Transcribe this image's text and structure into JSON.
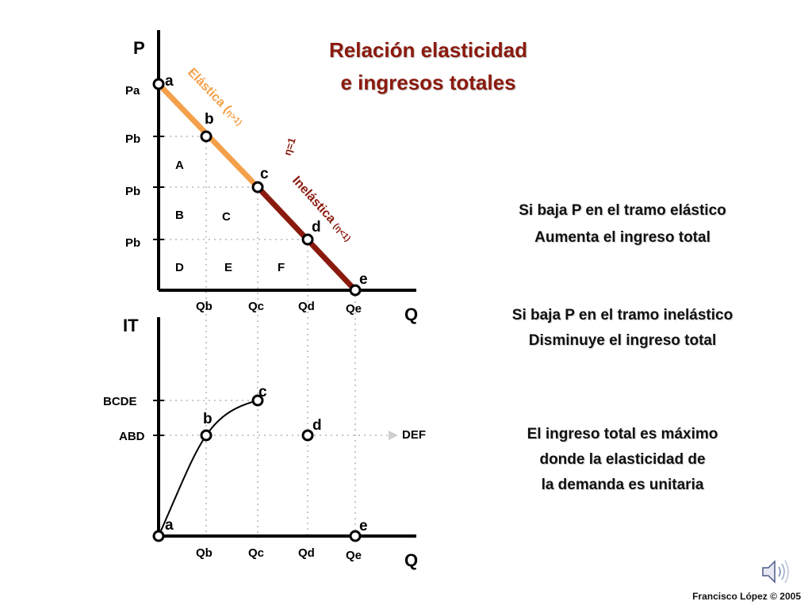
{
  "title": {
    "line1": "Relación elasticidad",
    "line2": "e ingresos totales"
  },
  "top_chart": {
    "y_axis_label": "P",
    "x_axis_label": "Q",
    "price_labels": [
      "Pa",
      "Pb",
      "Pb",
      "Pb"
    ],
    "quantity_labels": [
      "Qb",
      "Qc",
      "Qd",
      "Qe"
    ],
    "points": [
      "a",
      "b",
      "c",
      "d",
      "e"
    ],
    "areas": [
      "A",
      "B",
      "C",
      "D",
      "E",
      "F"
    ],
    "elastic_label_main": "Elástica (",
    "elastic_label_sub": "η>1)",
    "unit_label": "η=1",
    "inelastic_label_main": "Inelástica ",
    "inelastic_label_sub": "(η<1)",
    "elastic_color": "#F4A04A",
    "inelastic_color": "#8B1A0E"
  },
  "bottom_chart": {
    "y_axis_label": "IT",
    "x_axis_label": "Q",
    "revenue_labels": [
      "BCDE",
      "ABD"
    ],
    "def_label": "DEF",
    "quantity_labels": [
      "Qb",
      "Qc",
      "Qd",
      "Qe"
    ],
    "points": [
      "a",
      "b",
      "c",
      "d",
      "e"
    ]
  },
  "statements": [
    {
      "line1": "Si baja P en el tramo elástico",
      "line2": "Aumenta el ingreso total"
    },
    {
      "line1": "Si baja P en el tramo inelástico",
      "line2": "Disminuye el ingreso total"
    },
    {
      "line1": "El ingreso total es máximo",
      "line2": "donde la elasticidad de",
      "line3": "la demanda es unitaria"
    }
  ],
  "credit": "Francisco López © 2005",
  "icons": [
    "speaker-icon",
    "arrow-right-icon"
  ]
}
